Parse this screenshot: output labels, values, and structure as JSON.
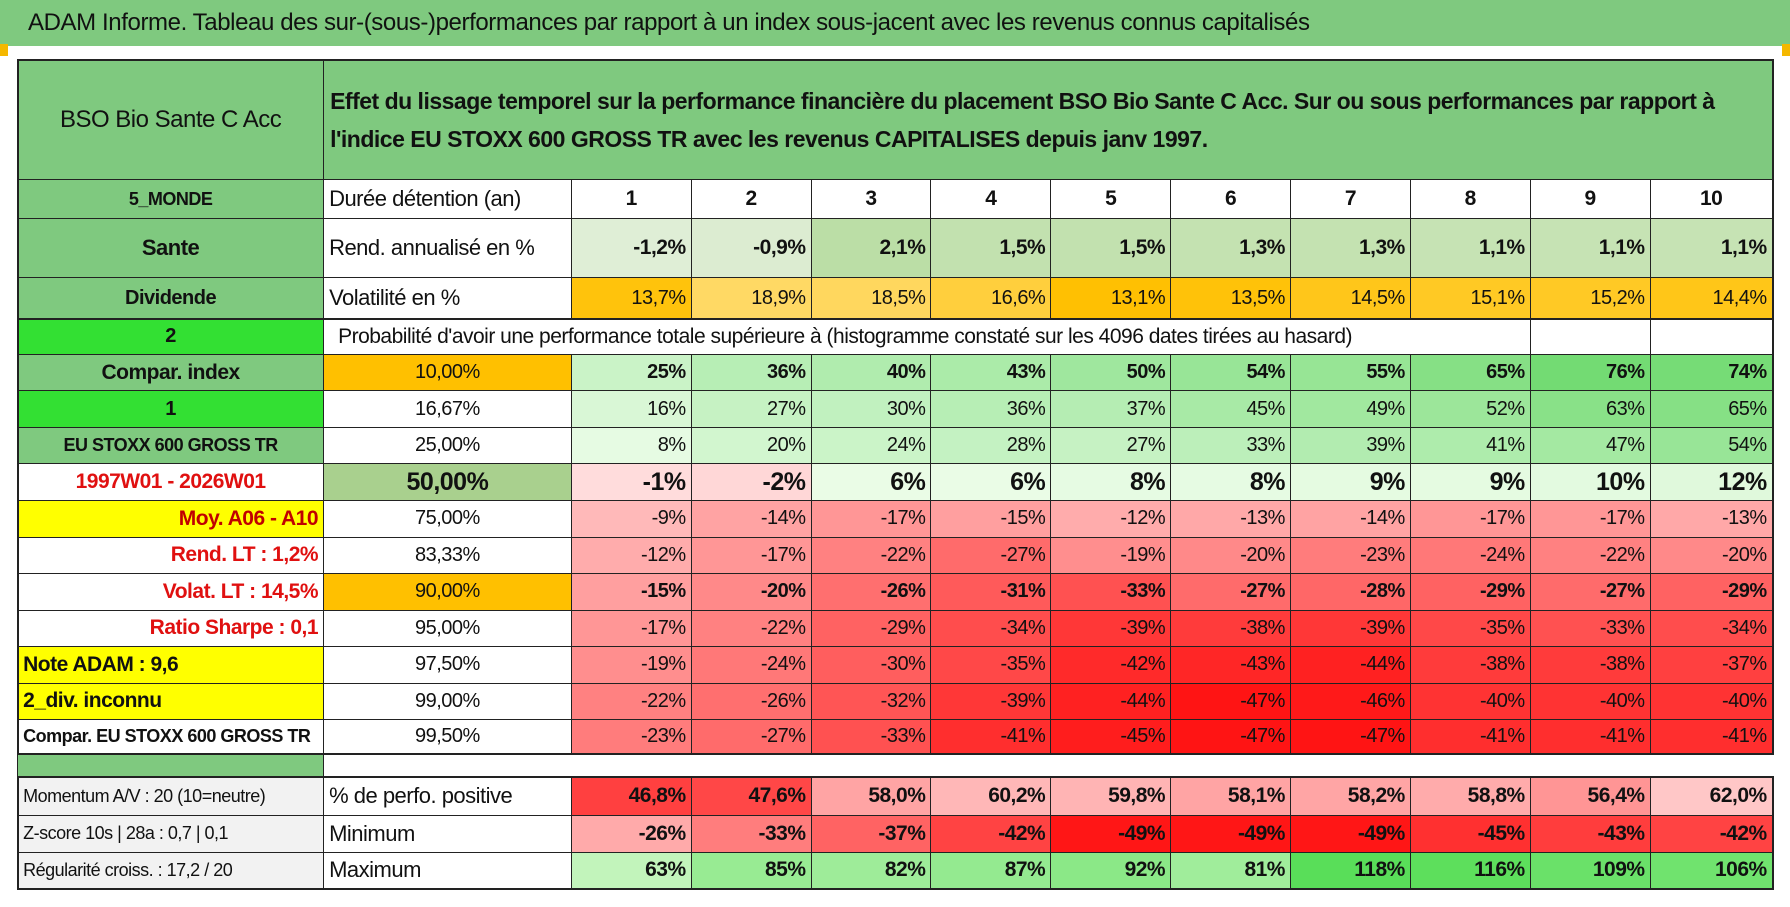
{
  "header": {
    "title": "ADAM Informe. Tableau des sur-(sous-)performances par rapport à un index sous-jacent avec les revenus connus capitalisés"
  },
  "table": {
    "rows": [
      [
        "BSO Bio Sante C Acc",
        "Effet du lissage temporel sur la performance financière du placement BSO Bio Sante C Acc. Sur ou sous performances par rapport à l'indice EU STOXX 600 GROSS TR avec les revenus CAPITALISES depuis janv 1997."
      ],
      [
        "5_MONDE",
        "Durée détention (an)",
        "1",
        "2",
        "3",
        "4",
        "5",
        "6",
        "7",
        "8",
        "9",
        "10"
      ],
      [
        "Sante",
        "Rend. annualisé en %",
        "-1,2%",
        "-0,9%",
        "2,1%",
        "1,5%",
        "1,5%",
        "1,3%",
        "1,3%",
        "1,1%",
        "1,1%",
        "1,1%"
      ],
      [
        "Dividende",
        "Volatilité en %",
        "13,7%",
        "18,9%",
        "18,5%",
        "16,6%",
        "13,1%",
        "13,5%",
        "14,5%",
        "15,1%",
        "15,2%",
        "14,4%"
      ],
      [
        "2",
        "Probabilité d'avoir une performance totale supérieure à (histogramme constaté sur les 4096 dates tirées au hasard)"
      ],
      [
        "Compar. index",
        "10,00%",
        "25%",
        "36%",
        "40%",
        "43%",
        "50%",
        "54%",
        "55%",
        "65%",
        "76%",
        "74%"
      ],
      [
        "1",
        "16,67%",
        "16%",
        "27%",
        "30%",
        "36%",
        "37%",
        "45%",
        "49%",
        "52%",
        "63%",
        "65%"
      ],
      [
        "EU STOXX 600 GROSS TR",
        "25,00%",
        "8%",
        "20%",
        "24%",
        "28%",
        "27%",
        "33%",
        "39%",
        "41%",
        "47%",
        "54%"
      ],
      [
        "1997W01 - 2026W01",
        "50,00%",
        "-1%",
        "-2%",
        "6%",
        "6%",
        "8%",
        "8%",
        "9%",
        "9%",
        "10%",
        "12%"
      ],
      [
        "Moy. A06 - A10",
        "75,00%",
        "-9%",
        "-14%",
        "-17%",
        "-15%",
        "-12%",
        "-13%",
        "-14%",
        "-17%",
        "-17%",
        "-13%"
      ],
      [
        "Rend. LT :   1,2%",
        "83,33%",
        "-12%",
        "-17%",
        "-22%",
        "-27%",
        "-19%",
        "-20%",
        "-23%",
        "-24%",
        "-22%",
        "-20%"
      ],
      [
        "Volat. LT :   14,5%",
        "90,00%",
        "-15%",
        "-20%",
        "-26%",
        "-31%",
        "-33%",
        "-27%",
        "-28%",
        "-29%",
        "-27%",
        "-29%"
      ],
      [
        "Ratio Sharpe :    0,1",
        "95,00%",
        "-17%",
        "-22%",
        "-29%",
        "-34%",
        "-39%",
        "-38%",
        "-39%",
        "-35%",
        "-33%",
        "-34%"
      ],
      [
        "Note ADAM : 9,6",
        "97,50%",
        "-19%",
        "-24%",
        "-30%",
        "-35%",
        "-42%",
        "-43%",
        "-44%",
        "-38%",
        "-38%",
        "-37%"
      ],
      [
        "2_div. inconnu",
        "99,00%",
        "-22%",
        "-26%",
        "-32%",
        "-39%",
        "-44%",
        "-47%",
        "-46%",
        "-40%",
        "-40%",
        "-40%"
      ],
      [
        "Compar. EU STOXX 600 GROSS TR",
        "99,50%",
        "-23%",
        "-27%",
        "-33%",
        "-41%",
        "-45%",
        "-47%",
        "-47%",
        "-41%",
        "-41%",
        "-41%"
      ],
      [
        "Momentum A/V : 20 (10=neutre)",
        "% de perfo. positive",
        "46,8%",
        "47,6%",
        "58,0%",
        "60,2%",
        "59,8%",
        "58,1%",
        "58,2%",
        "58,8%",
        "56,4%",
        "62,0%"
      ],
      [
        "Z-score 10s | 28a : 0,7 | 0,1",
        "Minimum",
        "-26%",
        "-33%",
        "-37%",
        "-42%",
        "-49%",
        "-49%",
        "-49%",
        "-45%",
        "-43%",
        "-42%"
      ],
      [
        "Régularité croiss. : 17,2 / 20",
        "Maximum",
        "63%",
        "85%",
        "82%",
        "87%",
        "92%",
        "81%",
        "118%",
        "116%",
        "109%",
        "106%"
      ]
    ]
  }
}
